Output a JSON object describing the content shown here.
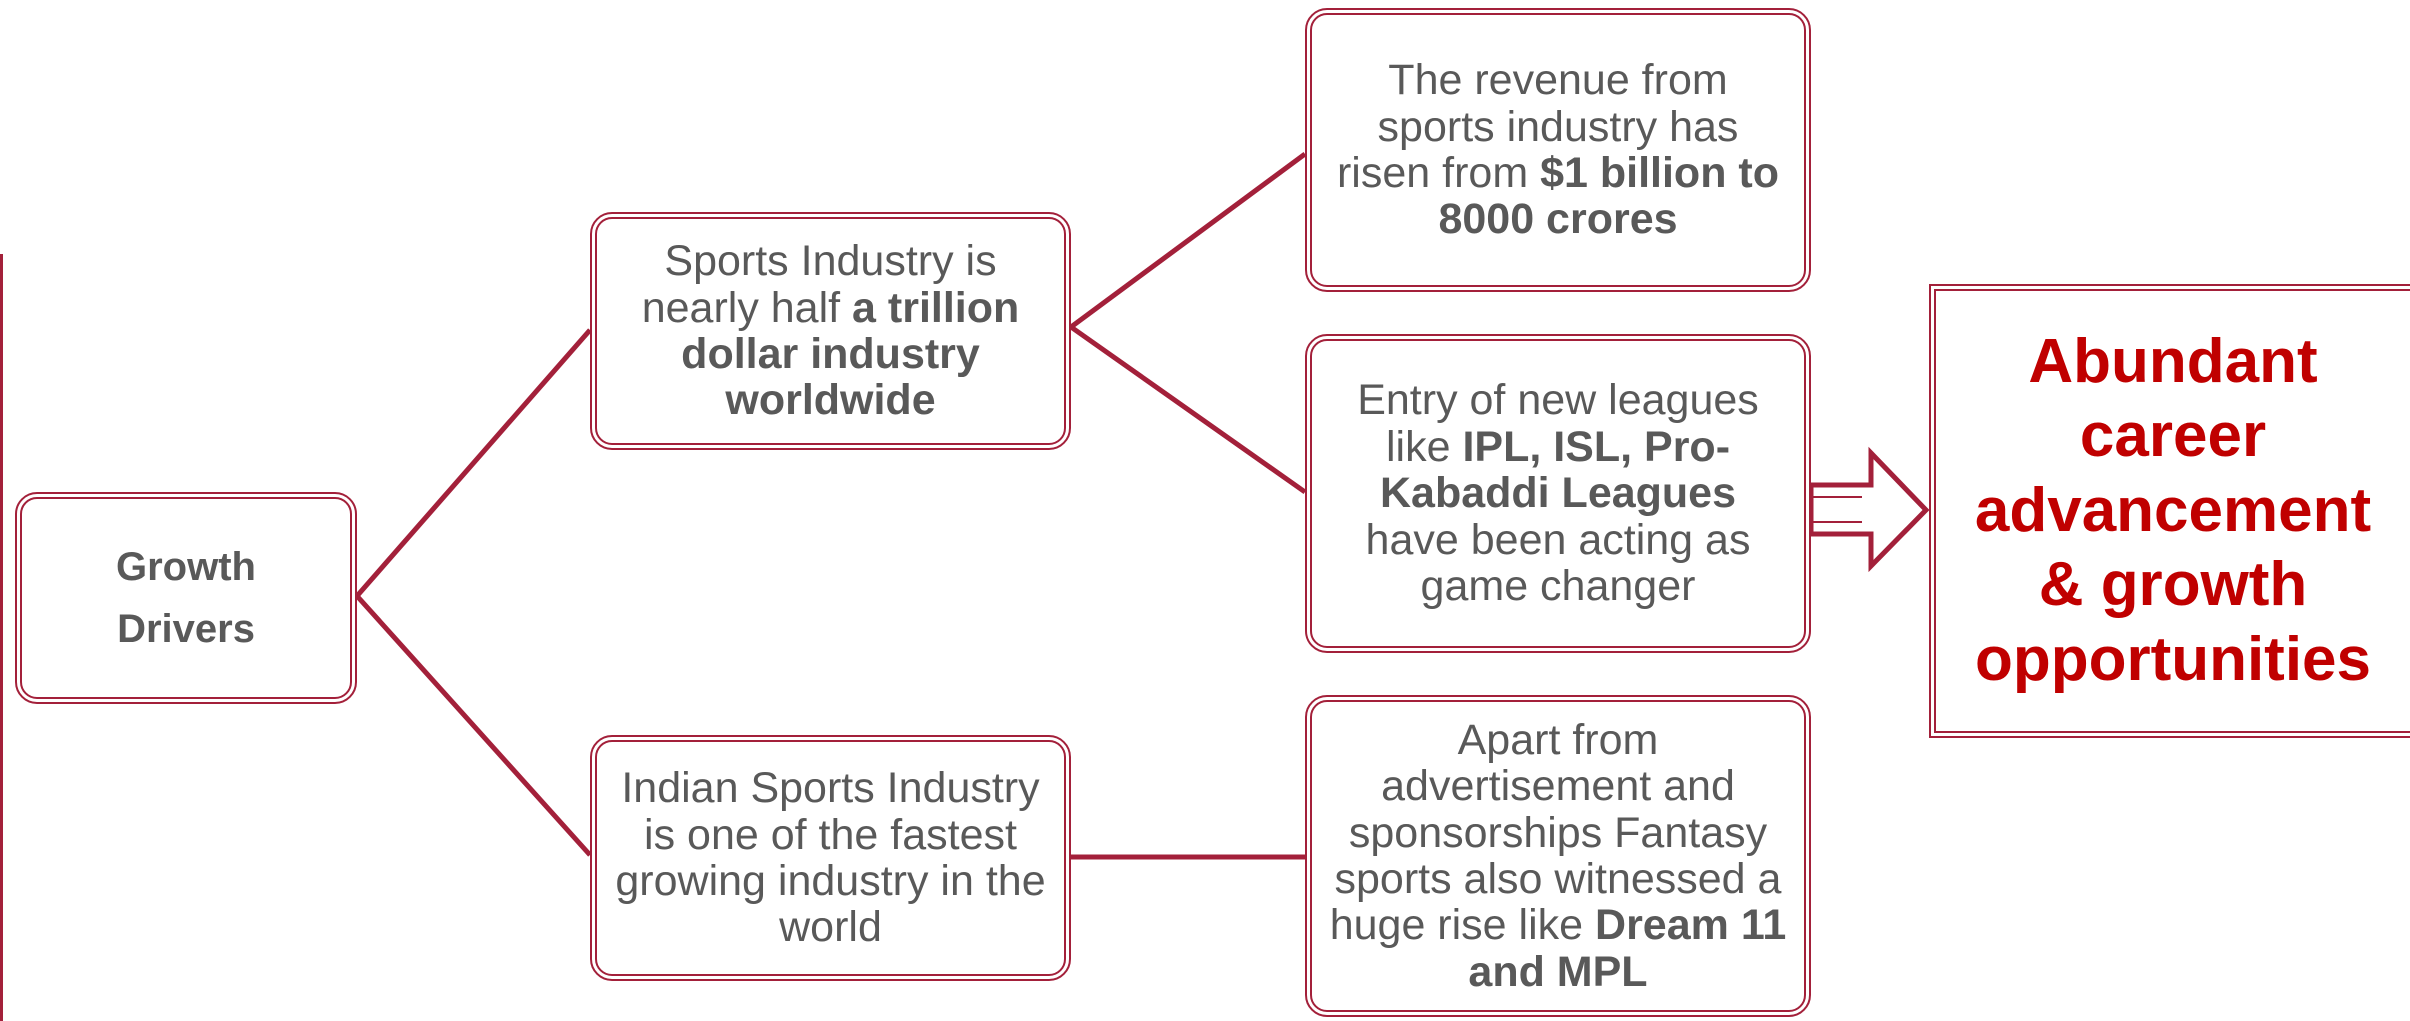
{
  "nodes": [
    {
      "parts": [
        {
          "text": "Growth Drivers",
          "bold": true
        }
      ]
    },
    {
      "parts": [
        {
          "text": "Sports Industry is nearly half ",
          "bold": false
        },
        {
          "text": "a trillion dollar industry worldwide",
          "bold": true
        }
      ]
    },
    {
      "parts": [
        {
          "text": "Indian Sports Industry is one of the fastest growing industry in the world",
          "bold": false
        }
      ]
    },
    {
      "parts": [
        {
          "text": "The revenue from sports industry has risen from ",
          "bold": false
        },
        {
          "text": "$1 billion to 8000 crores",
          "bold": true
        }
      ]
    },
    {
      "parts": [
        {
          "text": "Entry of new leagues like ",
          "bold": false
        },
        {
          "text": "IPL, ISL, Pro-Kabaddi Leagues",
          "bold": true
        },
        {
          "text": " have been acting as game changer",
          "bold": false
        }
      ]
    },
    {
      "parts": [
        {
          "text": "Apart from advertisement and sponsorships Fantasy sports also witnessed a huge rise like ",
          "bold": false
        },
        {
          "text": "Dream 11 and MPL",
          "bold": true
        }
      ]
    },
    {
      "parts": [
        {
          "text": "Abundant career advancement & growth opportunities",
          "bold": true
        }
      ]
    }
  ]
}
